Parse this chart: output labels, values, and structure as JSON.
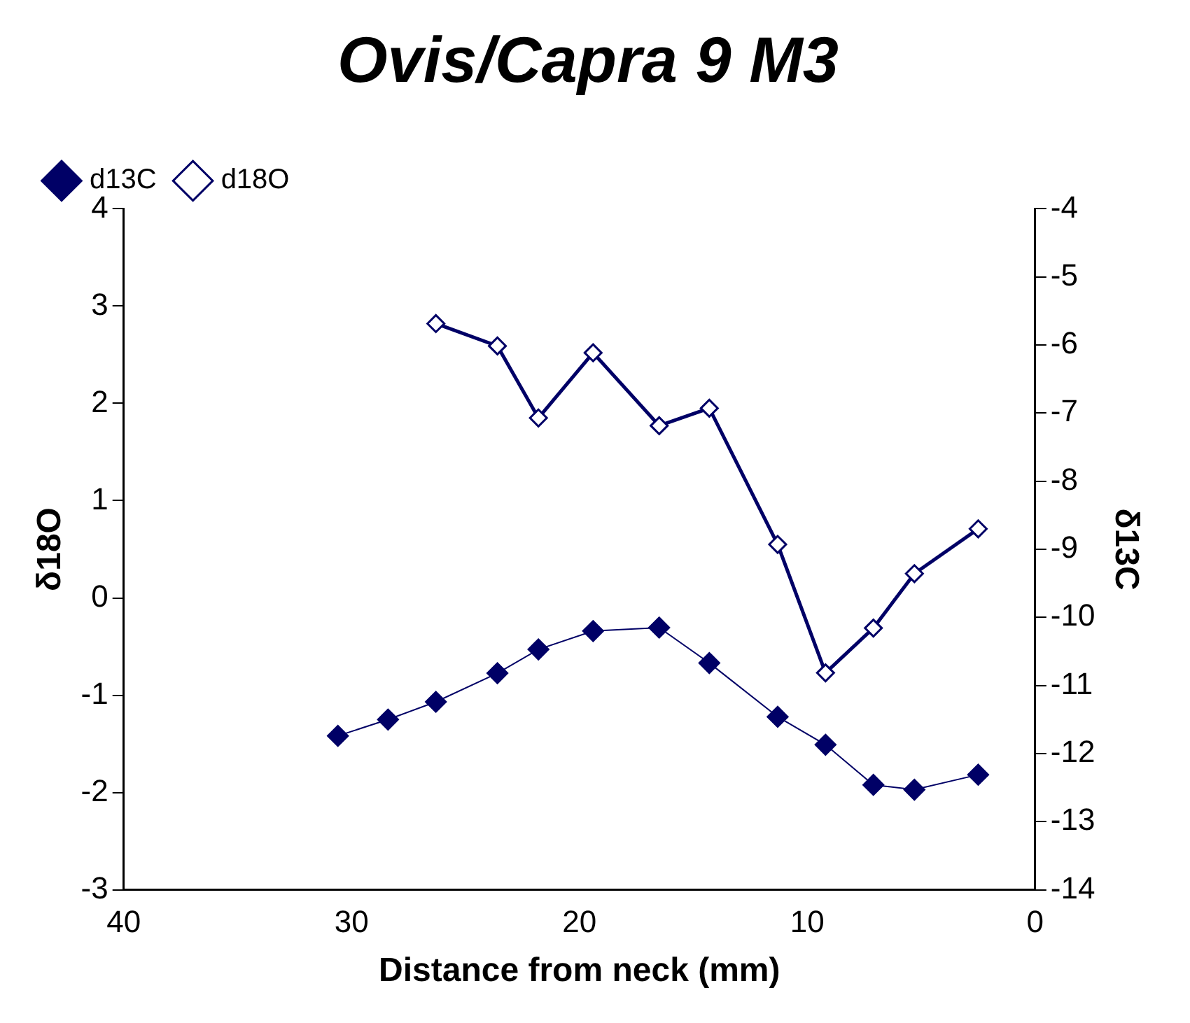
{
  "chart_data": {
    "type": "line",
    "title": "Ovis/Capra 9 M3",
    "xlabel": "Distance from neck (mm)",
    "ylabel": "δ18O",
    "y2label": "δ13C",
    "xlim": [
      40,
      0
    ],
    "xticks": [
      40,
      30,
      20,
      10,
      0
    ],
    "ylim": [
      -3,
      4
    ],
    "yticks": [
      -3,
      -2,
      -1,
      0,
      1,
      2,
      3,
      4
    ],
    "y2lim": [
      -14,
      -4
    ],
    "y2ticks": [
      -14,
      -13,
      -12,
      -11,
      -10,
      -9,
      -8,
      -7,
      -6,
      -5,
      -4
    ],
    "grid": false,
    "legend": "top left",
    "marker": "diamond",
    "line_style": "solid",
    "series": [
      {
        "name": "d13C",
        "color": "#000066",
        "axis": "y2",
        "x": [
          30.6,
          28.4,
          26.3,
          23.6,
          21.8,
          19.4,
          16.5,
          14.3,
          11.3,
          9.2,
          7.1,
          5.3,
          2.5
        ],
        "values": [
          -11.74,
          -11.5,
          -11.24,
          -10.82,
          -10.47,
          -10.2,
          -10.15,
          -10.67,
          -11.46,
          -11.87,
          -12.46,
          -12.53,
          -12.31
        ]
      },
      {
        "name": "d18O",
        "color": "#000066",
        "x": [
          26.3,
          23.6,
          21.8,
          19.4,
          16.5,
          14.3,
          11.3,
          9.2,
          7.1,
          5.3,
          2.5
        ],
        "values": [
          2.82,
          2.59,
          1.85,
          2.52,
          1.77,
          1.95,
          0.55,
          -0.77,
          -0.31,
          0.25,
          0.71
        ]
      }
    ]
  }
}
